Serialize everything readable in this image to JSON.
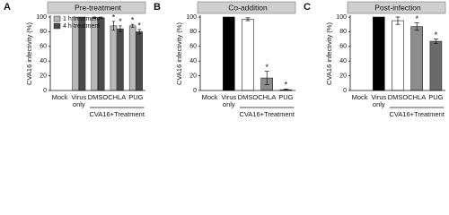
{
  "chart_data": [
    {
      "type": "bar",
      "panel_label": "A",
      "title": "Pre-treatment",
      "y_label": "CVA16 infectivity (%)",
      "group_label": "CVA16+Treatment",
      "categories": [
        "Mock",
        "Virus only",
        "DMSO",
        "CHLA",
        "PUG"
      ],
      "ylim": [
        0,
        100
      ],
      "yticks": [
        0,
        20,
        40,
        60,
        80,
        100
      ],
      "legend": "upper left",
      "series": [
        {
          "name": "1 h treatment",
          "color": "#b8b8b8",
          "values": [
            0,
            100,
            99,
            88,
            88
          ],
          "errors": [
            0,
            0,
            1,
            6,
            2
          ],
          "significance": [
            null,
            null,
            null,
            "*",
            "*"
          ]
        },
        {
          "name": "4 h treatment",
          "color": "#4a4a4a",
          "values": [
            0,
            100,
            99,
            84,
            80
          ],
          "errors": [
            0,
            0,
            1,
            4,
            3
          ],
          "significance": [
            null,
            null,
            null,
            "*",
            "*"
          ]
        }
      ]
    },
    {
      "type": "bar",
      "panel_label": "B",
      "title": "Co-addition",
      "y_label": "CVA16 infectivity (%)",
      "group_label": "CVA16+Treatment",
      "categories": [
        "Mock",
        "Virus only",
        "DMSO",
        "CHLA",
        "PUG"
      ],
      "ylim": [
        0,
        100
      ],
      "yticks": [
        0,
        20,
        40,
        60,
        80,
        100
      ],
      "values": [
        0,
        100,
        97,
        17,
        1
      ],
      "errors": [
        0,
        0,
        2,
        9,
        1
      ],
      "colors": [
        "#000000",
        "#000000",
        "#ffffff",
        "#8c8c8c",
        "#555555"
      ],
      "significance": [
        null,
        null,
        null,
        "*",
        "*"
      ]
    },
    {
      "type": "bar",
      "panel_label": "C",
      "title": "Post-infection",
      "y_label": "CVA16 infectivity (%)",
      "group_label": "CVA16+Treatment",
      "categories": [
        "Mock",
        "Virus only",
        "DMSO",
        "CHLA",
        "PUG"
      ],
      "ylim": [
        0,
        100
      ],
      "yticks": [
        0,
        20,
        40,
        60,
        80,
        100
      ],
      "values": [
        0,
        100,
        95,
        87,
        67
      ],
      "errors": [
        0,
        0,
        5,
        5,
        3
      ],
      "colors": [
        "#000000",
        "#000000",
        "#ffffff",
        "#8c8c8c",
        "#6a6a6a"
      ],
      "significance": [
        null,
        null,
        null,
        "*",
        "*"
      ]
    }
  ]
}
